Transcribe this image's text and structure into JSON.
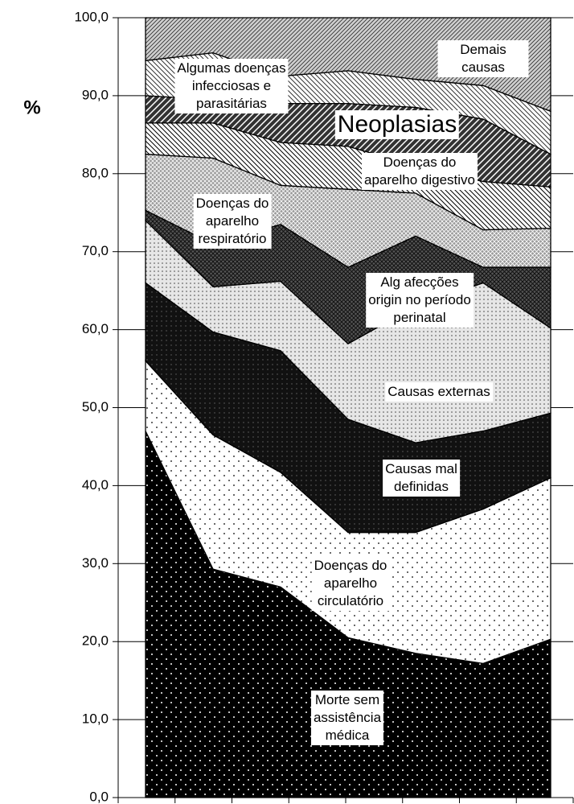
{
  "chart_data": {
    "type": "stacked_area",
    "y_label": "%",
    "categories": [
      null,
      null,
      null,
      null,
      null,
      null,
      null
    ],
    "ylim": [
      0,
      100
    ],
    "yticks": [
      {
        "value": 0,
        "label": "0,0"
      },
      {
        "value": 10,
        "label": "10,0"
      },
      {
        "value": 20,
        "label": "20,0"
      },
      {
        "value": 30,
        "label": "30,0"
      },
      {
        "value": 40,
        "label": "40,0"
      },
      {
        "value": 50,
        "label": "50,0"
      },
      {
        "value": 60,
        "label": "60,0"
      },
      {
        "value": 70,
        "label": "70,0"
      },
      {
        "value": 80,
        "label": "80,0"
      },
      {
        "value": 90,
        "label": "90,0"
      },
      {
        "value": 100,
        "label": "100,0"
      }
    ],
    "grid": true,
    "series": [
      {
        "name": "Morte sem\nassistência\nmédica",
        "color": "#000000",
        "values": [
          47,
          29.3,
          27,
          20.5,
          18.5,
          17.2,
          20.3
        ]
      },
      {
        "name": "Doenças do\naparelho\ncirculatório",
        "color": "#ffffff",
        "values": [
          9,
          17.2,
          14.7,
          13.5,
          15.5,
          19.8,
          20.7
        ]
      },
      {
        "name": "Causas mal\ndefinidas",
        "color": "#111111",
        "values": [
          10,
          13.2,
          15.6,
          14.5,
          11.5,
          10,
          8.3
        ]
      },
      {
        "name": "Causas externas",
        "color": "#e6e6e6",
        "values": [
          8,
          5.8,
          8.9,
          9.7,
          17.5,
          19,
          10.9
        ]
      },
      {
        "name": "Alg afecções\norigin no período\nperinatal",
        "color": "#555555",
        "values": [
          1.3,
          5.5,
          7.3,
          9.8,
          9,
          2,
          7.8
        ]
      },
      {
        "name": "Doenças do\naparelho\nrespiratório",
        "color": "#9a9a9a",
        "values": [
          7.2,
          11,
          5,
          10,
          5.5,
          4.8,
          5
        ]
      },
      {
        "name": "Doenças do\naparelho digestivo",
        "color": "#ffffff",
        "values": [
          4,
          4.5,
          5.5,
          5.5,
          3.5,
          6.2,
          5.3
        ]
      },
      {
        "name": "Neoplasias",
        "color": "#333333",
        "values": [
          3.5,
          3,
          5,
          5.5,
          7.5,
          8,
          4.2
        ]
      },
      {
        "name": "Algumas doenças\ninfecciosas e\nparasitárias",
        "color": "#ffffff",
        "values": [
          4.5,
          6,
          3.5,
          4.2,
          3.6,
          4.3,
          5.5
        ]
      },
      {
        "name": "Demais causas",
        "color": "#d0d0d0",
        "values": [
          5.5,
          4.5,
          7.5,
          6.8,
          7.9,
          8.7,
          12
        ]
      }
    ]
  }
}
